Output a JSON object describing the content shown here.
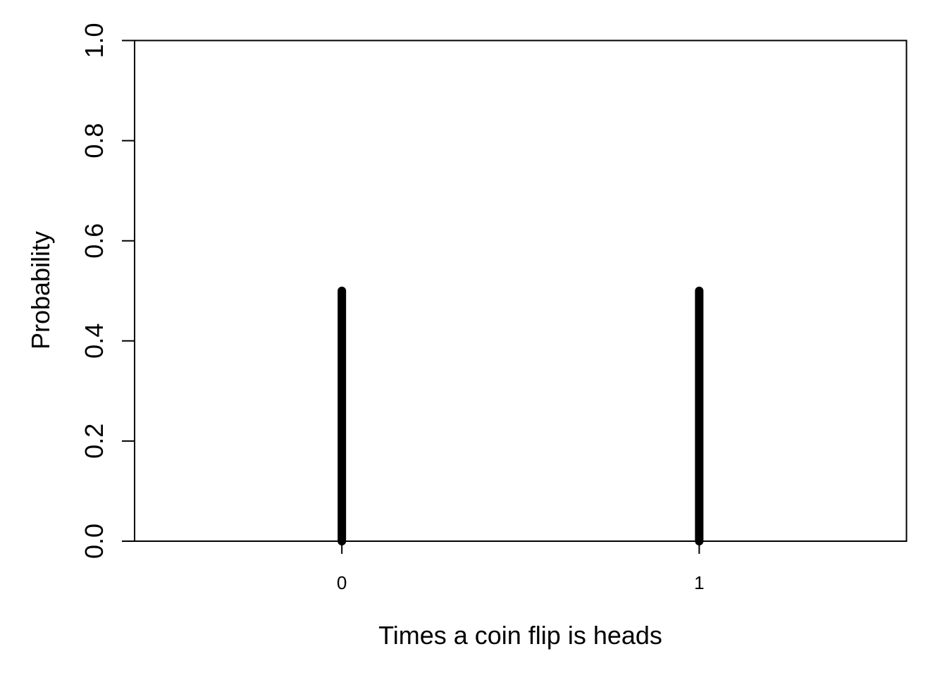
{
  "chart_data": {
    "type": "bar",
    "title": "",
    "xlabel": "Times a coin flip is heads",
    "ylabel": "Probability",
    "categories": [
      "0",
      "1"
    ],
    "x": [
      0,
      1
    ],
    "values": [
      0.5,
      0.5
    ],
    "xlim": [
      -0.58,
      1.58
    ],
    "ylim": [
      0,
      1
    ],
    "y_ticks": [
      "0.0",
      "0.2",
      "0.4",
      "0.6",
      "0.8",
      "1.0"
    ],
    "x_ticks": [
      "0",
      "1"
    ],
    "grid": false,
    "bar_color": "#000000",
    "axis_color": "#000000"
  }
}
